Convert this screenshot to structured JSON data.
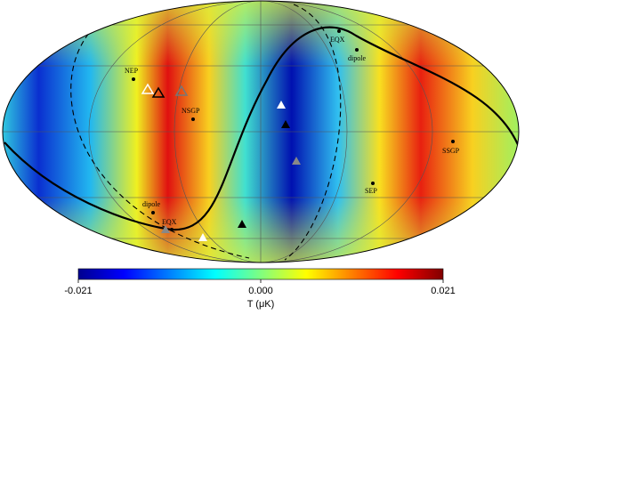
{
  "chart_data": {
    "type": "map",
    "xlabel": "T (μK)",
    "xlim": [
      -0.021,
      0.021
    ],
    "xticks": [
      -0.021,
      {
        "value": 0,
        "label": "0.000"
      },
      0.021
    ],
    "annotations": [
      "NEP",
      "NSGP",
      "EQX",
      "dipole",
      "SSGP",
      "SEP",
      "dipole",
      "EQX"
    ]
  }
}
